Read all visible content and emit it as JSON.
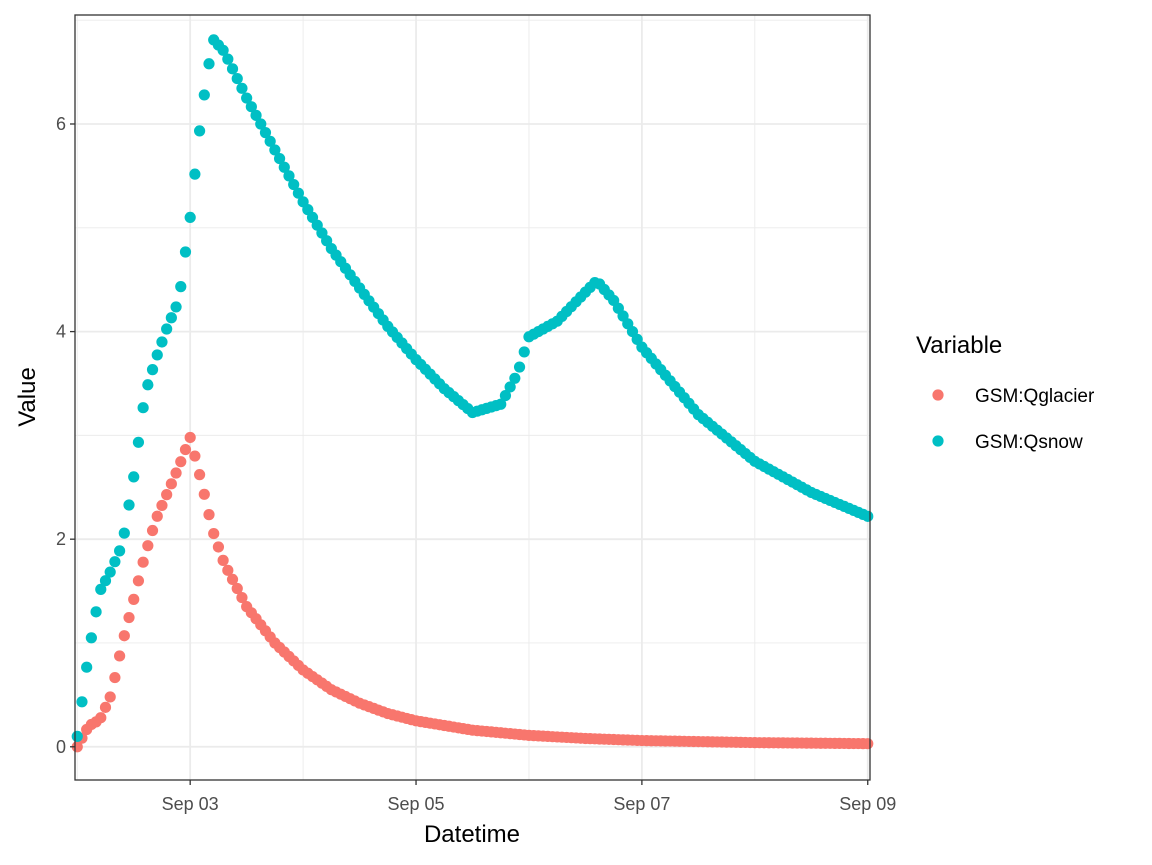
{
  "chart_data": {
    "type": "scatter",
    "title": "",
    "xlabel": "Datetime",
    "ylabel": "Value",
    "x_unit": "days since Sep 01 00:00",
    "xlim": [
      0.98,
      8.02
    ],
    "ylim": [
      -0.32,
      7.05
    ],
    "x_ticks": [
      {
        "value": 2,
        "label": "Sep 03"
      },
      {
        "value": 4,
        "label": "Sep 05"
      },
      {
        "value": 6,
        "label": "Sep 07"
      },
      {
        "value": 8,
        "label": "Sep 09"
      }
    ],
    "y_ticks": [
      {
        "value": 0,
        "label": "0"
      },
      {
        "value": 2,
        "label": "2"
      },
      {
        "value": 4,
        "label": "4"
      },
      {
        "value": 6,
        "label": "6"
      }
    ],
    "grid": true,
    "legend": {
      "title": "Variable",
      "position": "right",
      "entries": [
        {
          "name": "GSM:Qglacier",
          "color": "#F8766D"
        },
        {
          "name": "GSM:Qsnow",
          "color": "#00BFC4"
        }
      ]
    },
    "series": [
      {
        "name": "GSM:Qglacier",
        "color": "#F8766D",
        "sampling": "hourly",
        "x": [
          1.0,
          1.1,
          1.2,
          1.3,
          1.4,
          1.5,
          1.6,
          1.7,
          1.8,
          1.9,
          2.0,
          2.1,
          2.2,
          2.3,
          2.5,
          2.75,
          3.0,
          3.25,
          3.5,
          3.75,
          4.0,
          4.5,
          5.0,
          5.5,
          6.0,
          6.5,
          7.0,
          7.5,
          8.0
        ],
        "values": [
          0.0,
          0.2,
          0.26,
          0.5,
          1.0,
          1.42,
          1.85,
          2.2,
          2.45,
          2.7,
          2.98,
          2.55,
          2.08,
          1.77,
          1.35,
          1.0,
          0.74,
          0.55,
          0.42,
          0.32,
          0.25,
          0.16,
          0.11,
          0.08,
          0.06,
          0.05,
          0.04,
          0.035,
          0.03
        ]
      },
      {
        "name": "GSM:Qsnow",
        "color": "#00BFC4",
        "sampling": "hourly",
        "x": [
          1.0,
          1.1,
          1.2,
          1.3,
          1.4,
          1.5,
          1.6,
          1.7,
          1.8,
          1.9,
          2.0,
          2.1,
          2.2,
          2.3,
          2.5,
          2.75,
          3.0,
          3.25,
          3.5,
          3.75,
          4.0,
          4.25,
          4.5,
          4.75,
          4.8,
          4.9,
          5.0,
          5.25,
          5.5,
          5.6,
          5.75,
          6.0,
          6.5,
          7.0,
          7.5,
          8.0
        ],
        "values": [
          0.1,
          0.9,
          1.5,
          1.7,
          1.95,
          2.6,
          3.4,
          3.75,
          4.05,
          4.3,
          5.1,
          6.1,
          6.82,
          6.7,
          6.25,
          5.75,
          5.25,
          4.8,
          4.42,
          4.05,
          3.73,
          3.45,
          3.22,
          3.3,
          3.4,
          3.6,
          3.95,
          4.1,
          4.38,
          4.49,
          4.3,
          3.85,
          3.2,
          2.75,
          2.45,
          2.22
        ]
      }
    ]
  }
}
